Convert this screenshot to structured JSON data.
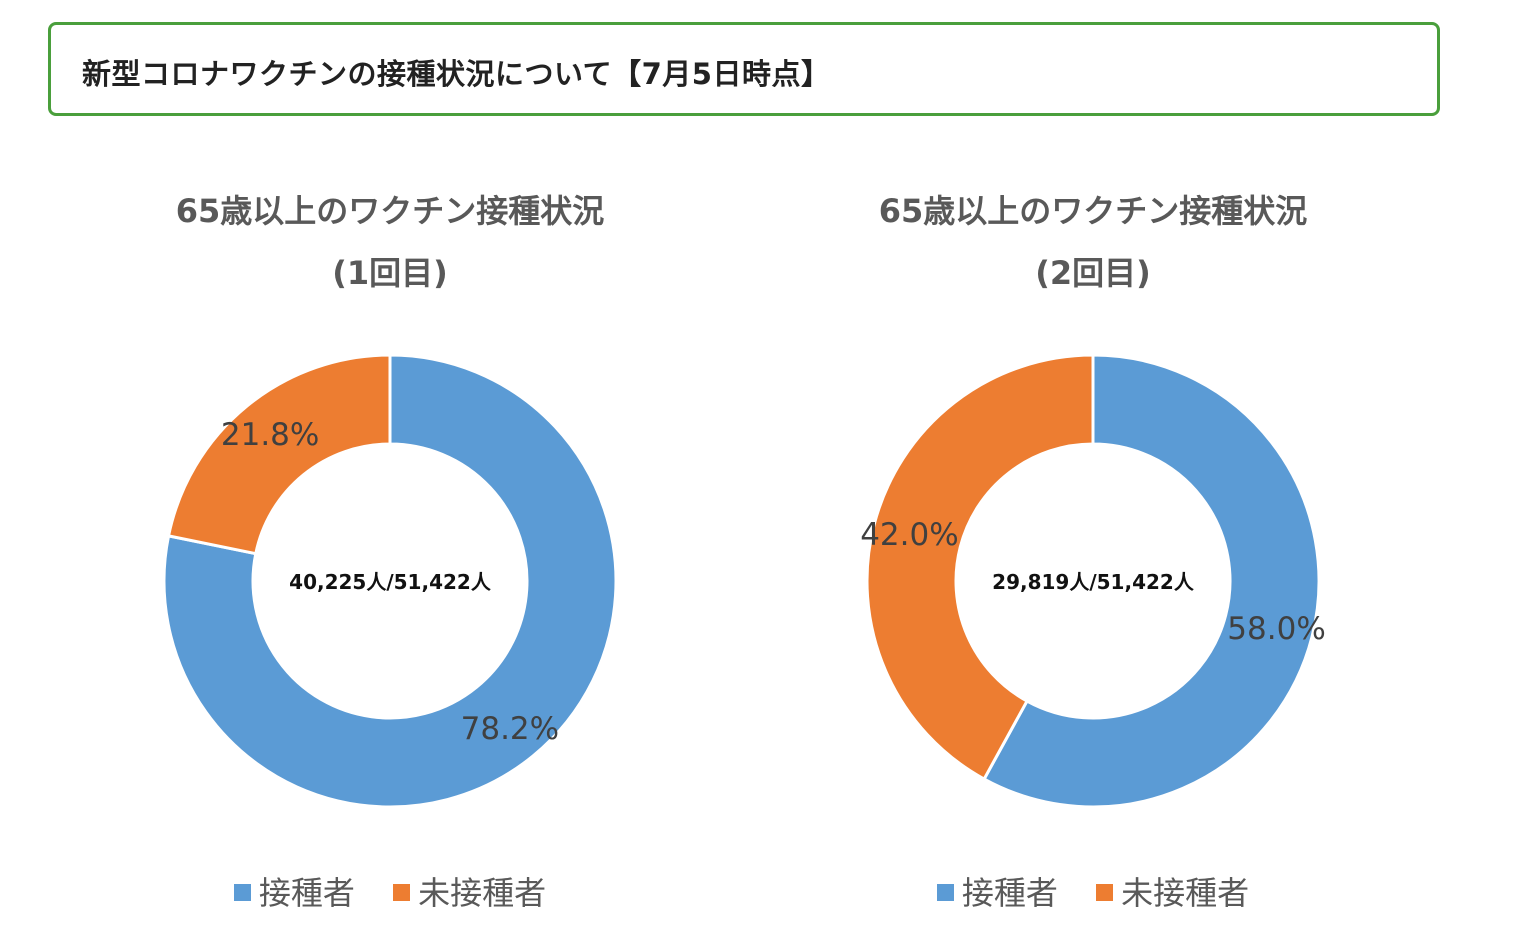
{
  "header": {
    "title": "新型コロナワクチンの接種状況について【7月5日時点】"
  },
  "colors": {
    "vaccinated": "#5b9bd5",
    "unvaccinated": "#ed7d31",
    "header_border": "#4a9f3c",
    "label_text": "#404040"
  },
  "chart_data": [
    {
      "type": "pie",
      "donut": true,
      "title_line1": "65歳以上のワクチン接種状況",
      "title_line2": "(1回目)",
      "center_label": "40,225人/51,422人",
      "slices": [
        {
          "name": "接種者",
          "value": 78.2,
          "label": "78.2%"
        },
        {
          "name": "未接種者",
          "value": 21.8,
          "label": "21.8%"
        }
      ],
      "legend": [
        "接種者",
        "未接種者"
      ],
      "legend_position": "bottom"
    },
    {
      "type": "pie",
      "donut": true,
      "title_line1": "65歳以上のワクチン接種状況",
      "title_line2": "(2回目)",
      "center_label": "29,819人/51,422人",
      "slices": [
        {
          "name": "接種者",
          "value": 58.0,
          "label": "58.0%"
        },
        {
          "name": "未接種者",
          "value": 42.0,
          "label": "42.0%"
        }
      ],
      "legend": [
        "接種者",
        "未接種者"
      ],
      "legend_position": "bottom"
    }
  ]
}
